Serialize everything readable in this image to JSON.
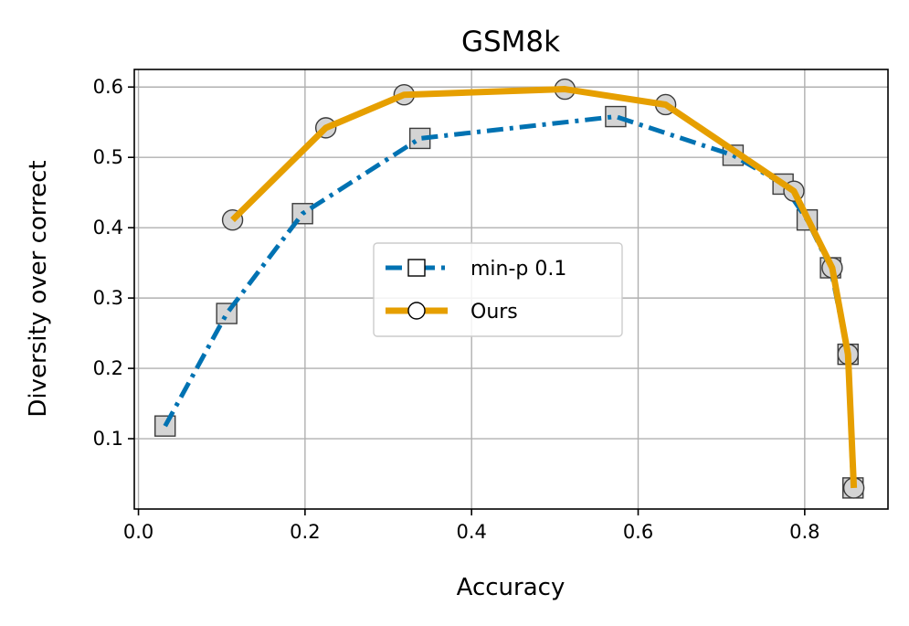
{
  "chart_data": {
    "type": "line",
    "title": "GSM8k",
    "xlabel": "Accuracy",
    "ylabel": "Diversity over correct",
    "xlim": [
      -0.005,
      0.9
    ],
    "ylim": [
      0.0,
      0.625
    ],
    "xticks": [
      0.0,
      0.2,
      0.4,
      0.6,
      0.8
    ],
    "xtick_labels": [
      "0.0",
      "0.2",
      "0.4",
      "0.6",
      "0.8"
    ],
    "yticks": [
      0.1,
      0.2,
      0.3,
      0.4,
      0.5,
      0.6
    ],
    "ytick_labels": [
      "0.1",
      "0.2",
      "0.3",
      "0.4",
      "0.5",
      "0.6"
    ],
    "grid": true,
    "legend_position": "center",
    "series": [
      {
        "name": "min-p 0.1",
        "color": "#0072b2",
        "line_style": "dash-dot",
        "marker": "square",
        "x": [
          0.032,
          0.106,
          0.197,
          0.338,
          0.573,
          0.714,
          0.774,
          0.803,
          0.831,
          0.852,
          0.858
        ],
        "y": [
          0.118,
          0.278,
          0.42,
          0.527,
          0.558,
          0.503,
          0.462,
          0.411,
          0.343,
          0.22,
          0.03
        ]
      },
      {
        "name": "Ours",
        "color": "#e69f00",
        "line_style": "solid",
        "marker": "circle",
        "x": [
          0.113,
          0.225,
          0.319,
          0.512,
          0.633,
          0.787,
          0.833,
          0.852,
          0.859
        ],
        "y": [
          0.411,
          0.542,
          0.589,
          0.597,
          0.575,
          0.452,
          0.343,
          0.22,
          0.03
        ]
      }
    ]
  }
}
